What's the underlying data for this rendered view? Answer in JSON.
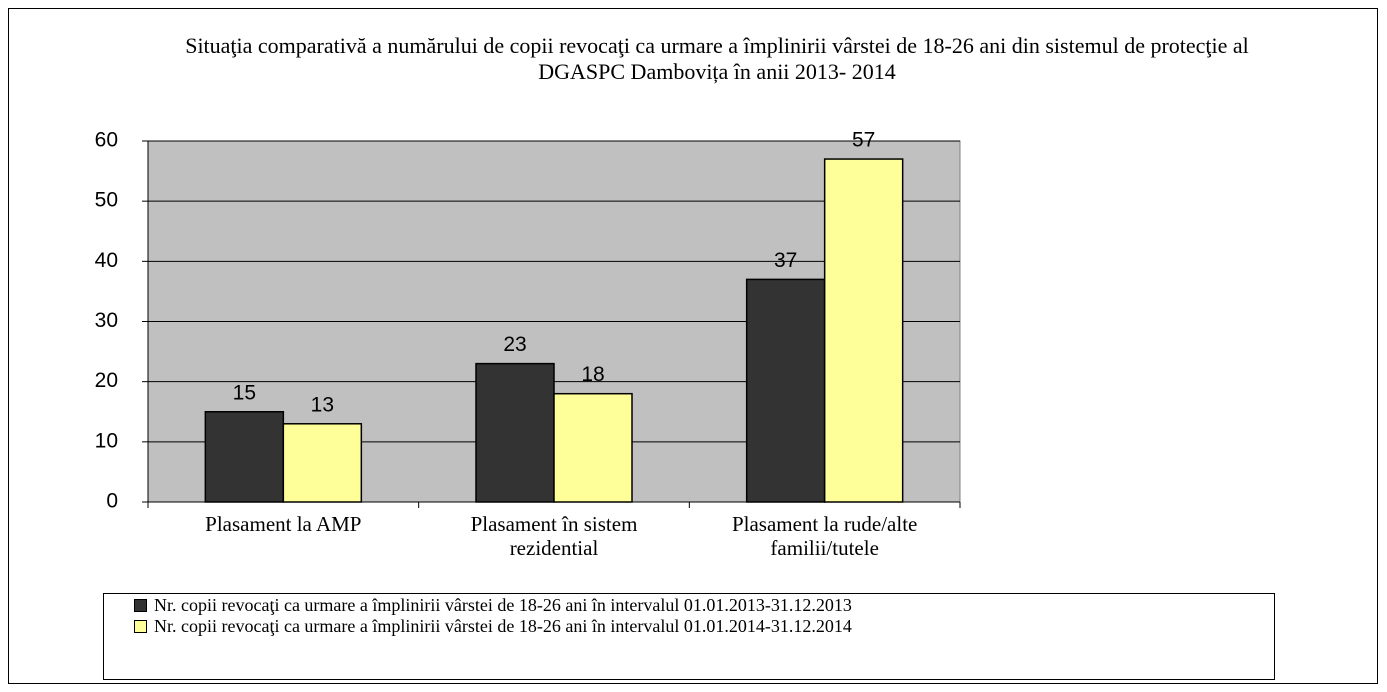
{
  "chart_data": {
    "type": "bar",
    "title": "Situaţia comparativă a numărului de copii revocaţi ca urmare a împlinirii vârstei de 18-26 ani din sistemul de protecţie al DGASPC Dambovița în anii 2013-  2014",
    "categories": [
      "Plasament la AMP",
      "Plasament în sistem rezidential",
      "Plasament la rude/alte familii/tutele"
    ],
    "series": [
      {
        "name": "Nr. copii revocaţi ca urmare a împlinirii vârstei de 18-26 ani în intervalul 01.01.2013-31.12.2013",
        "color": "#333333",
        "values": [
          15,
          23,
          37
        ]
      },
      {
        "name": "Nr. copii revocaţi ca urmare a împlinirii vârstei de 18-26 ani în intervalul 01.01.2014-31.12.2014",
        "color": "#ffff99",
        "values": [
          13,
          18,
          57
        ]
      }
    ],
    "ylim": [
      0,
      60
    ],
    "yticks": [
      0,
      10,
      20,
      30,
      40,
      50,
      60
    ],
    "grid": true,
    "plot_background": "#c0c0c0",
    "legend": "bottom"
  }
}
